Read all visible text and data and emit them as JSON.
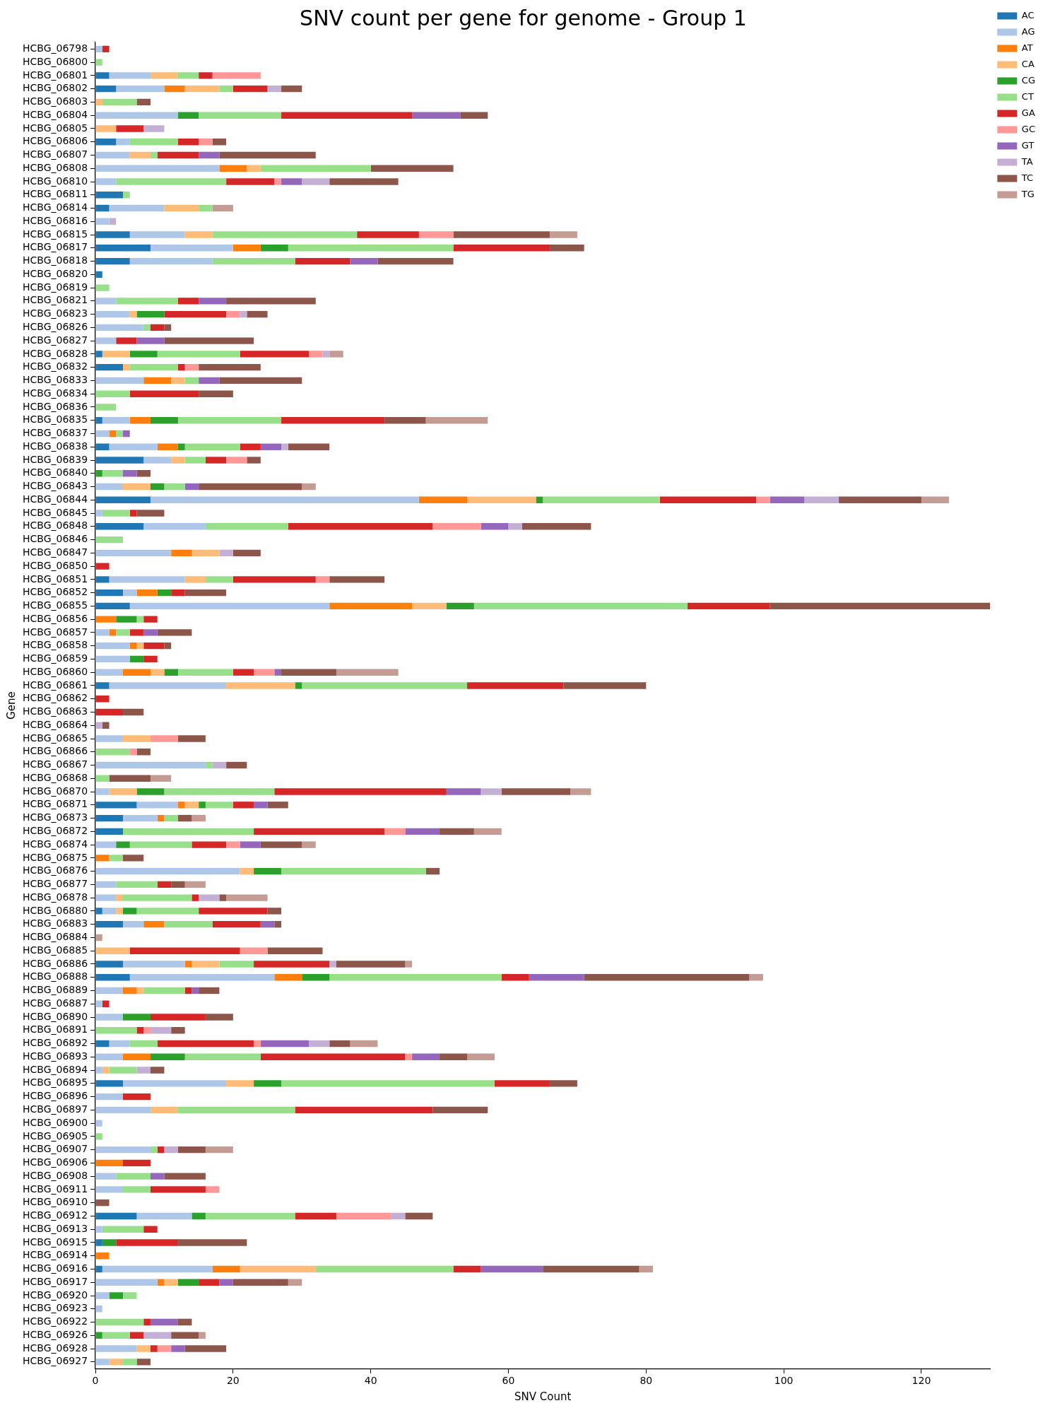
{
  "chart_data": {
    "type": "bar",
    "orientation": "horizontal",
    "stacked": true,
    "title": "SNV count per gene for genome - Group 1",
    "xlabel": "SNV Count",
    "ylabel": "Gene",
    "categories": [
      "HCBG_06798",
      "HCBG_06800",
      "HCBG_06801",
      "HCBG_06802",
      "HCBG_06803",
      "HCBG_06804",
      "HCBG_06805",
      "HCBG_06806",
      "HCBG_06807",
      "HCBG_06808",
      "HCBG_06810",
      "HCBG_06811",
      "HCBG_06814",
      "HCBG_06816",
      "HCBG_06815",
      "HCBG_06817",
      "HCBG_06818",
      "HCBG_06820",
      "HCBG_06819",
      "HCBG_06821",
      "HCBG_06823",
      "HCBG_06826",
      "HCBG_06827",
      "HCBG_06828",
      "HCBG_06832",
      "HCBG_06833",
      "HCBG_06834",
      "HCBG_06836",
      "HCBG_06835",
      "HCBG_06837",
      "HCBG_06838",
      "HCBG_06839",
      "HCBG_06840",
      "HCBG_06843",
      "HCBG_06844",
      "HCBG_06845",
      "HCBG_06848",
      "HCBG_06846",
      "HCBG_06847",
      "HCBG_06850",
      "HCBG_06851",
      "HCBG_06852",
      "HCBG_06855",
      "HCBG_06856",
      "HCBG_06857",
      "HCBG_06858",
      "HCBG_06859",
      "HCBG_06860",
      "HCBG_06861",
      "HCBG_06862",
      "HCBG_06863",
      "HCBG_06864",
      "HCBG_06865",
      "HCBG_06866",
      "HCBG_06867",
      "HCBG_06868",
      "HCBG_06870",
      "HCBG_06871",
      "HCBG_06873",
      "HCBG_06872",
      "HCBG_06874",
      "HCBG_06875",
      "HCBG_06876",
      "HCBG_06877",
      "HCBG_06878",
      "HCBG_06880",
      "HCBG_06883",
      "HCBG_06884",
      "HCBG_06885",
      "HCBG_06886",
      "HCBG_06888",
      "HCBG_06889",
      "HCBG_06887",
      "HCBG_06890",
      "HCBG_06891",
      "HCBG_06892",
      "HCBG_06893",
      "HCBG_06894",
      "HCBG_06895",
      "HCBG_06896",
      "HCBG_06897",
      "HCBG_06900",
      "HCBG_06905",
      "HCBG_06907",
      "HCBG_06906",
      "HCBG_06908",
      "HCBG_06911",
      "HCBG_06910",
      "HCBG_06912",
      "HCBG_06913",
      "HCBG_06915",
      "HCBG_06914",
      "HCBG_06916",
      "HCBG_06917",
      "HCBG_06920",
      "HCBG_06923",
      "HCBG_06922",
      "HCBG_06926",
      "HCBG_06928",
      "HCBG_06927"
    ],
    "series": [
      {
        "name": "AC",
        "color": "#1f77b4",
        "values": [
          0,
          0,
          2,
          3,
          0,
          0,
          0,
          3,
          0,
          0,
          0,
          4,
          2,
          0,
          5,
          8,
          5,
          1,
          0,
          0,
          0,
          0,
          0,
          1,
          4,
          0,
          0,
          0,
          1,
          0,
          2,
          7,
          0,
          0,
          8,
          0,
          7,
          0,
          0,
          0,
          2,
          4,
          5,
          0,
          0,
          0,
          0,
          0,
          2,
          0,
          0,
          0,
          0,
          0,
          0,
          0,
          0,
          6,
          4,
          4,
          0,
          0,
          0,
          0,
          0,
          1,
          4,
          0,
          0,
          4,
          5,
          0,
          0,
          0,
          0,
          2,
          0,
          0,
          4,
          0,
          0,
          0,
          0,
          0,
          0,
          0,
          0,
          0,
          6,
          0,
          1,
          0,
          1,
          0,
          0,
          0,
          0,
          0,
          0,
          0
        ]
      },
      {
        "name": "AG",
        "color": "#aec7e8",
        "values": [
          1,
          0,
          6,
          7,
          0,
          12,
          0,
          2,
          5,
          18,
          3,
          0,
          8,
          2,
          8,
          12,
          12,
          0,
          0,
          3,
          5,
          7,
          3,
          0,
          0,
          7,
          0,
          0,
          4,
          2,
          7,
          4,
          0,
          4,
          39,
          1,
          9,
          0,
          11,
          0,
          11,
          2,
          29,
          0,
          2,
          5,
          5,
          4,
          17,
          0,
          0,
          0,
          4,
          0,
          16,
          0,
          2,
          6,
          5,
          0,
          3,
          0,
          21,
          3,
          3,
          2,
          3,
          0,
          0,
          9,
          21,
          4,
          1,
          4,
          0,
          3,
          4,
          1,
          15,
          4,
          8,
          1,
          0,
          8,
          0,
          3,
          4,
          0,
          8,
          1,
          0,
          0,
          16,
          9,
          2,
          1,
          0,
          0,
          6,
          2
        ]
      },
      {
        "name": "AT",
        "color": "#ff7f0e",
        "values": [
          0,
          0,
          0,
          3,
          0,
          0,
          0,
          0,
          0,
          4,
          0,
          0,
          0,
          0,
          0,
          4,
          0,
          0,
          0,
          0,
          0,
          0,
          0,
          0,
          0,
          4,
          0,
          0,
          3,
          1,
          3,
          0,
          0,
          0,
          7,
          0,
          0,
          0,
          3,
          0,
          0,
          3,
          12,
          3,
          1,
          1,
          0,
          4,
          0,
          0,
          0,
          0,
          0,
          0,
          0,
          0,
          0,
          1,
          1,
          0,
          0,
          2,
          0,
          0,
          0,
          0,
          3,
          0,
          0,
          1,
          4,
          2,
          0,
          0,
          0,
          0,
          4,
          0,
          0,
          0,
          0,
          0,
          0,
          0,
          4,
          0,
          0,
          0,
          0,
          0,
          0,
          2,
          4,
          1,
          0,
          0,
          0,
          0,
          0,
          0
        ]
      },
      {
        "name": "CA",
        "color": "#ffbb78",
        "values": [
          0,
          0,
          4,
          5,
          1,
          0,
          3,
          0,
          3,
          2,
          0,
          0,
          5,
          0,
          4,
          0,
          0,
          0,
          0,
          0,
          1,
          0,
          0,
          4,
          1,
          2,
          0,
          0,
          0,
          0,
          0,
          2,
          0,
          4,
          10,
          0,
          0,
          0,
          4,
          0,
          3,
          0,
          5,
          0,
          0,
          1,
          0,
          2,
          10,
          0,
          0,
          0,
          4,
          0,
          0,
          0,
          4,
          2,
          0,
          0,
          0,
          0,
          2,
          0,
          1,
          1,
          0,
          0,
          5,
          4,
          0,
          1,
          0,
          0,
          0,
          0,
          0,
          1,
          4,
          0,
          4,
          0,
          0,
          0,
          0,
          0,
          0,
          0,
          0,
          0,
          0,
          0,
          11,
          2,
          0,
          0,
          0,
          0,
          2,
          2
        ]
      },
      {
        "name": "CG",
        "color": "#2ca02c",
        "values": [
          0,
          0,
          0,
          0,
          0,
          3,
          0,
          0,
          0,
          0,
          0,
          0,
          0,
          0,
          0,
          4,
          0,
          0,
          0,
          0,
          4,
          0,
          0,
          4,
          0,
          0,
          0,
          0,
          4,
          0,
          1,
          0,
          1,
          2,
          1,
          0,
          0,
          0,
          0,
          0,
          0,
          2,
          4,
          3,
          0,
          0,
          2,
          2,
          1,
          0,
          0,
          0,
          0,
          0,
          0,
          0,
          4,
          1,
          0,
          0,
          2,
          0,
          4,
          0,
          0,
          2,
          0,
          0,
          0,
          0,
          4,
          0,
          0,
          4,
          0,
          0,
          5,
          0,
          4,
          0,
          0,
          0,
          0,
          0,
          0,
          0,
          0,
          0,
          2,
          0,
          2,
          0,
          0,
          3,
          2,
          0,
          0,
          1,
          0,
          0
        ]
      },
      {
        "name": "CT",
        "color": "#98df8a",
        "values": [
          0,
          1,
          3,
          2,
          5,
          12,
          0,
          7,
          1,
          16,
          16,
          1,
          2,
          0,
          21,
          24,
          12,
          0,
          2,
          9,
          0,
          1,
          0,
          12,
          7,
          2,
          5,
          3,
          15,
          1,
          8,
          3,
          3,
          3,
          17,
          4,
          12,
          4,
          0,
          0,
          4,
          0,
          31,
          1,
          2,
          0,
          0,
          8,
          24,
          0,
          0,
          0,
          0,
          5,
          1,
          2,
          16,
          4,
          2,
          19,
          9,
          2,
          21,
          6,
          10,
          9,
          7,
          0,
          0,
          5,
          25,
          6,
          0,
          0,
          6,
          4,
          11,
          4,
          31,
          0,
          17,
          0,
          1,
          1,
          0,
          5,
          4,
          0,
          13,
          6,
          0,
          0,
          20,
          0,
          2,
          0,
          7,
          4,
          0,
          2
        ]
      },
      {
        "name": "GA",
        "color": "#d62728",
        "values": [
          1,
          0,
          2,
          5,
          0,
          19,
          4,
          3,
          6,
          0,
          7,
          0,
          0,
          0,
          9,
          14,
          8,
          0,
          0,
          3,
          9,
          2,
          3,
          10,
          1,
          0,
          10,
          0,
          15,
          0,
          3,
          3,
          0,
          0,
          14,
          1,
          21,
          0,
          0,
          2,
          12,
          2,
          12,
          2,
          2,
          3,
          2,
          3,
          14,
          2,
          4,
          0,
          0,
          0,
          0,
          0,
          25,
          3,
          0,
          19,
          5,
          0,
          0,
          2,
          1,
          10,
          7,
          0,
          16,
          11,
          4,
          1,
          1,
          8,
          1,
          14,
          21,
          0,
          8,
          4,
          20,
          0,
          0,
          1,
          4,
          0,
          8,
          0,
          6,
          2,
          9,
          0,
          4,
          3,
          0,
          0,
          1,
          2,
          1,
          0
        ]
      },
      {
        "name": "GC",
        "color": "#ff9896",
        "values": [
          0,
          0,
          7,
          0,
          0,
          0,
          0,
          2,
          0,
          0,
          1,
          0,
          0,
          0,
          5,
          0,
          0,
          0,
          0,
          0,
          2,
          0,
          0,
          2,
          2,
          0,
          0,
          0,
          0,
          0,
          0,
          3,
          0,
          0,
          2,
          0,
          7,
          0,
          0,
          0,
          2,
          0,
          0,
          0,
          0,
          0,
          0,
          3,
          0,
          0,
          0,
          0,
          4,
          1,
          0,
          0,
          0,
          0,
          0,
          3,
          2,
          0,
          0,
          0,
          0,
          0,
          0,
          0,
          4,
          0,
          0,
          0,
          0,
          0,
          1,
          1,
          1,
          0,
          0,
          0,
          0,
          0,
          0,
          0,
          0,
          0,
          2,
          0,
          8,
          0,
          0,
          0,
          0,
          0,
          0,
          0,
          0,
          0,
          2,
          0
        ]
      },
      {
        "name": "GT",
        "color": "#9467bd",
        "values": [
          0,
          0,
          0,
          0,
          0,
          7,
          0,
          0,
          3,
          0,
          3,
          0,
          0,
          0,
          0,
          0,
          4,
          0,
          0,
          4,
          0,
          0,
          4,
          0,
          0,
          3,
          0,
          0,
          0,
          1,
          3,
          0,
          2,
          2,
          5,
          0,
          4,
          0,
          0,
          0,
          0,
          0,
          0,
          0,
          2,
          0,
          0,
          1,
          0,
          0,
          0,
          0,
          0,
          0,
          0,
          0,
          5,
          2,
          0,
          5,
          3,
          0,
          0,
          0,
          0,
          0,
          2,
          0,
          0,
          0,
          8,
          1,
          0,
          0,
          0,
          7,
          4,
          0,
          0,
          0,
          0,
          0,
          0,
          0,
          0,
          2,
          0,
          0,
          0,
          0,
          0,
          0,
          9,
          2,
          0,
          0,
          4,
          0,
          2,
          0
        ]
      },
      {
        "name": "TA",
        "color": "#c5b0d5",
        "values": [
          0,
          0,
          0,
          2,
          0,
          0,
          3,
          0,
          0,
          0,
          4,
          0,
          0,
          1,
          0,
          0,
          0,
          0,
          0,
          0,
          1,
          0,
          0,
          1,
          0,
          0,
          0,
          0,
          0,
          0,
          1,
          0,
          0,
          0,
          5,
          0,
          2,
          0,
          2,
          0,
          0,
          0,
          0,
          0,
          0,
          0,
          0,
          0,
          0,
          0,
          0,
          1,
          0,
          0,
          2,
          0,
          3,
          0,
          0,
          0,
          0,
          0,
          0,
          0,
          3,
          0,
          0,
          0,
          0,
          1,
          0,
          0,
          0,
          0,
          3,
          3,
          0,
          2,
          0,
          0,
          0,
          0,
          0,
          2,
          0,
          0,
          0,
          0,
          2,
          0,
          0,
          0,
          0,
          0,
          0,
          0,
          0,
          4,
          0,
          0
        ]
      },
      {
        "name": "TC",
        "color": "#8c564b",
        "values": [
          0,
          0,
          0,
          3,
          2,
          4,
          0,
          2,
          14,
          12,
          10,
          0,
          0,
          0,
          14,
          5,
          11,
          0,
          0,
          13,
          3,
          1,
          13,
          0,
          9,
          12,
          5,
          0,
          6,
          0,
          6,
          2,
          2,
          15,
          12,
          4,
          10,
          0,
          4,
          0,
          8,
          6,
          32,
          0,
          5,
          1,
          0,
          8,
          12,
          0,
          3,
          1,
          4,
          2,
          3,
          6,
          10,
          3,
          2,
          5,
          6,
          3,
          2,
          2,
          1,
          2,
          1,
          0,
          8,
          10,
          24,
          3,
          0,
          4,
          2,
          3,
          4,
          2,
          4,
          0,
          8,
          0,
          0,
          4,
          0,
          6,
          0,
          2,
          4,
          0,
          10,
          0,
          14,
          8,
          0,
          0,
          2,
          4,
          6,
          2
        ]
      },
      {
        "name": "TG",
        "color": "#c49c94",
        "values": [
          0,
          0,
          0,
          0,
          0,
          0,
          0,
          0,
          0,
          0,
          0,
          0,
          3,
          0,
          4,
          0,
          0,
          0,
          0,
          0,
          0,
          0,
          0,
          2,
          0,
          0,
          0,
          0,
          9,
          0,
          0,
          0,
          0,
          2,
          4,
          0,
          0,
          0,
          0,
          0,
          0,
          0,
          0,
          0,
          0,
          0,
          0,
          9,
          0,
          0,
          0,
          0,
          0,
          0,
          0,
          3,
          3,
          0,
          2,
          4,
          2,
          0,
          0,
          3,
          6,
          0,
          0,
          1,
          0,
          1,
          2,
          0,
          0,
          0,
          0,
          4,
          4,
          0,
          0,
          0,
          0,
          0,
          0,
          4,
          0,
          0,
          0,
          0,
          0,
          0,
          0,
          0,
          2,
          2,
          0,
          0,
          0,
          1,
          0,
          0
        ]
      }
    ],
    "xlim": [
      0,
      130
    ],
    "xticks": [
      0,
      20,
      40,
      60,
      80,
      100,
      120
    ],
    "grid": false,
    "legend": "top right"
  }
}
